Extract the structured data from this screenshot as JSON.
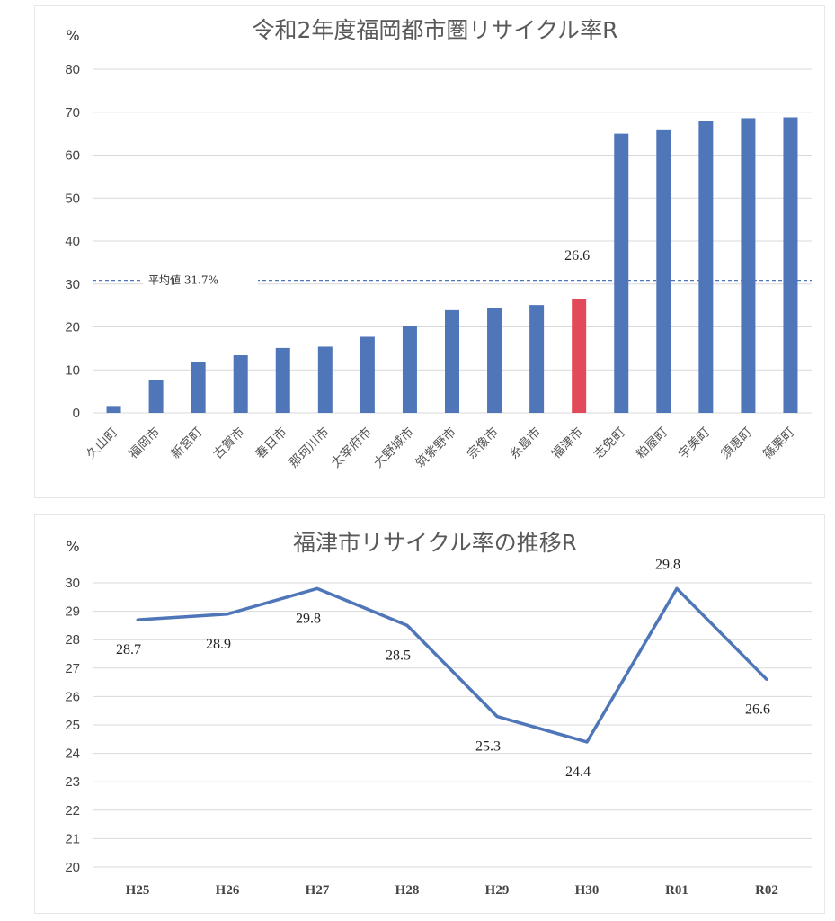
{
  "chart_data": [
    {
      "type": "bar",
      "title": "令和2年度福岡都市圏リサイクル率R",
      "unit": "%",
      "categories": [
        "久山町",
        "福岡市",
        "新宮町",
        "古賀市",
        "春日市",
        "那珂川市",
        "太宰府市",
        "大野城市",
        "筑紫野市",
        "宗像市",
        "糸島市",
        "福津市",
        "志免町",
        "粕屋町",
        "宇美町",
        "須恵町",
        "篠栗町"
      ],
      "values": [
        1.6,
        7.6,
        11.9,
        13.4,
        15.1,
        15.4,
        17.7,
        20.1,
        23.9,
        24.4,
        25.1,
        26.6,
        65.0,
        66.0,
        67.9,
        68.6,
        68.8
      ],
      "highlight_index": 11,
      "highlight_label": "26.6",
      "ylim": [
        0,
        80
      ],
      "yticks": [
        0,
        10,
        20,
        30,
        40,
        50,
        60,
        70,
        80
      ],
      "average": {
        "value": 31.7,
        "label": "平均値  31.7%"
      },
      "colors": {
        "bar": "#4f76b8",
        "highlight": "#e24a5a",
        "average": "#4f76b8"
      },
      "grid": true
    },
    {
      "type": "line",
      "title": "福津市リサイクル率の推移R",
      "unit": "%",
      "x": [
        "H25",
        "H26",
        "H27",
        "H28",
        "H29",
        "H30",
        "R01",
        "R02"
      ],
      "values": [
        28.7,
        28.9,
        29.8,
        28.5,
        25.3,
        24.4,
        29.8,
        26.6
      ],
      "labels": [
        "28.7",
        "28.9",
        "29.8",
        "28.5",
        "25.3",
        "24.4",
        "29.8",
        "26.6"
      ],
      "ylim": [
        20,
        30
      ],
      "yticks": [
        20,
        21,
        22,
        23,
        24,
        25,
        26,
        27,
        28,
        29,
        30
      ],
      "colors": {
        "line": "#4f76b8"
      },
      "grid": true
    }
  ]
}
